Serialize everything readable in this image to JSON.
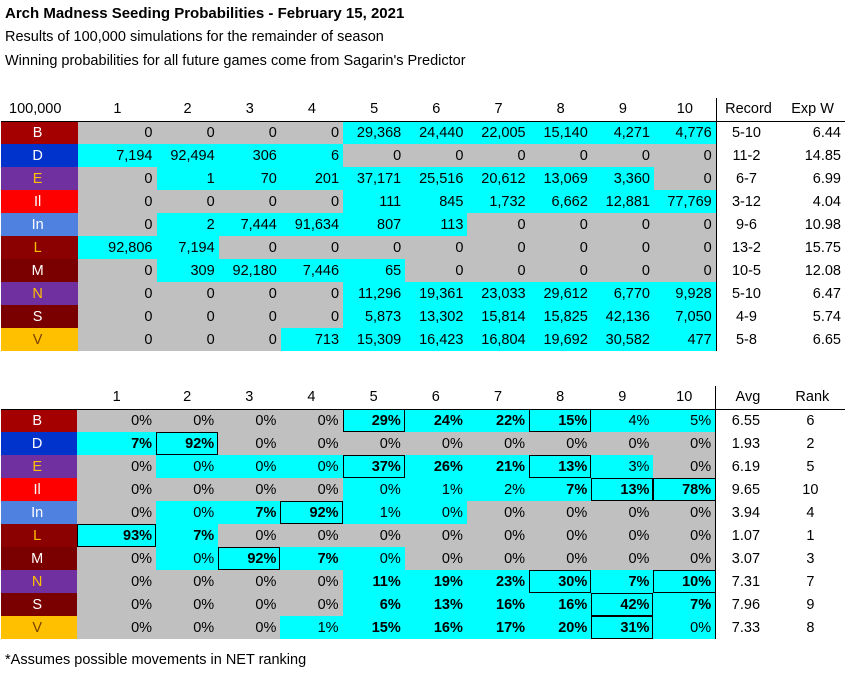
{
  "title": "Arch Madness Seeding Probabilities - February 15, 2021",
  "subtitle1": "Results of 100,000 simulations for the remainder of season",
  "subtitle2": "Winning probabilities for all future games come from Sagarin's Predictor",
  "footnote": "*Assumes possible movements in NET ranking",
  "colors": {
    "cyan": "#00ffff",
    "gray": "#c0c0c0"
  },
  "counts": {
    "corner": "100,000",
    "cols": [
      "1",
      "2",
      "3",
      "4",
      "5",
      "6",
      "7",
      "8",
      "9",
      "10"
    ],
    "side_headers": [
      "Record",
      "Exp W"
    ],
    "rows": [
      {
        "team": "B",
        "color": "#a50000",
        "text": "#ffffff",
        "cells": [
          "0",
          "0",
          "0",
          "0",
          "29,368",
          "24,440",
          "22,005",
          "15,140",
          "4,271",
          "4,776"
        ],
        "fills": [
          "g",
          "g",
          "g",
          "g",
          "c",
          "c",
          "c",
          "c",
          "c",
          "c"
        ],
        "record": "5-10",
        "expw": "6.44"
      },
      {
        "team": "D",
        "color": "#0033cc",
        "text": "#ffffff",
        "cells": [
          "7,194",
          "92,494",
          "306",
          "6",
          "0",
          "0",
          "0",
          "0",
          "0",
          "0"
        ],
        "fills": [
          "c",
          "c",
          "c",
          "c",
          "g",
          "g",
          "g",
          "g",
          "g",
          "g"
        ],
        "record": "11-2",
        "expw": "14.85"
      },
      {
        "team": "E",
        "color": "#7030a0",
        "text": "#ffc000",
        "cells": [
          "0",
          "1",
          "70",
          "201",
          "37,171",
          "25,516",
          "20,612",
          "13,069",
          "3,360",
          "0"
        ],
        "fills": [
          "g",
          "c",
          "c",
          "c",
          "c",
          "c",
          "c",
          "c",
          "c",
          "g"
        ],
        "record": "6-7",
        "expw": "6.99"
      },
      {
        "team": "Il",
        "color": "#ff0000",
        "text": "#ffffff",
        "cells": [
          "0",
          "0",
          "0",
          "0",
          "111",
          "845",
          "1,732",
          "6,662",
          "12,881",
          "77,769"
        ],
        "fills": [
          "g",
          "g",
          "g",
          "g",
          "c",
          "c",
          "c",
          "c",
          "c",
          "c"
        ],
        "record": "3-12",
        "expw": "4.04"
      },
      {
        "team": "In",
        "color": "#4f81e0",
        "text": "#ffffff",
        "cells": [
          "0",
          "2",
          "7,444",
          "91,634",
          "807",
          "113",
          "0",
          "0",
          "0",
          "0"
        ],
        "fills": [
          "g",
          "c",
          "c",
          "c",
          "c",
          "c",
          "g",
          "g",
          "g",
          "g"
        ],
        "record": "9-6",
        "expw": "10.98"
      },
      {
        "team": "L",
        "color": "#8b0000",
        "text": "#ffc000",
        "cells": [
          "92,806",
          "7,194",
          "0",
          "0",
          "0",
          "0",
          "0",
          "0",
          "0",
          "0"
        ],
        "fills": [
          "c",
          "c",
          "g",
          "g",
          "g",
          "g",
          "g",
          "g",
          "g",
          "g"
        ],
        "record": "13-2",
        "expw": "15.75"
      },
      {
        "team": "M",
        "color": "#7a0000",
        "text": "#ffffff",
        "cells": [
          "0",
          "309",
          "92,180",
          "7,446",
          "65",
          "0",
          "0",
          "0",
          "0",
          "0"
        ],
        "fills": [
          "g",
          "c",
          "c",
          "c",
          "c",
          "g",
          "g",
          "g",
          "g",
          "g"
        ],
        "record": "10-5",
        "expw": "12.08"
      },
      {
        "team": "N",
        "color": "#7030a0",
        "text": "#ffc000",
        "cells": [
          "0",
          "0",
          "0",
          "0",
          "11,296",
          "19,361",
          "23,033",
          "29,612",
          "6,770",
          "9,928"
        ],
        "fills": [
          "g",
          "g",
          "g",
          "g",
          "c",
          "c",
          "c",
          "c",
          "c",
          "c"
        ],
        "record": "5-10",
        "expw": "6.47"
      },
      {
        "team": "S",
        "color": "#7a0000",
        "text": "#ffffff",
        "cells": [
          "0",
          "0",
          "0",
          "0",
          "5,873",
          "13,302",
          "15,814",
          "15,825",
          "42,136",
          "7,050"
        ],
        "fills": [
          "g",
          "g",
          "g",
          "g",
          "c",
          "c",
          "c",
          "c",
          "c",
          "c"
        ],
        "record": "4-9",
        "expw": "5.74"
      },
      {
        "team": "V",
        "color": "#ffc000",
        "text": "#7a4000",
        "cells": [
          "0",
          "0",
          "0",
          "713",
          "15,309",
          "16,423",
          "16,804",
          "19,692",
          "30,582",
          "477"
        ],
        "fills": [
          "g",
          "g",
          "g",
          "c",
          "c",
          "c",
          "c",
          "c",
          "c",
          "c"
        ],
        "record": "5-8",
        "expw": "6.65"
      }
    ]
  },
  "pcts": {
    "cols": [
      "1",
      "2",
      "3",
      "4",
      "5",
      "6",
      "7",
      "8",
      "9",
      "10"
    ],
    "side_headers": [
      "Avg",
      "Rank"
    ],
    "rows": [
      {
        "team": "B",
        "color": "#a50000",
        "text": "#ffffff",
        "cells": [
          "0%",
          "0%",
          "0%",
          "0%",
          "29%",
          "24%",
          "22%",
          "15%",
          "4%",
          "5%"
        ],
        "fills": [
          "g",
          "g",
          "g",
          "g",
          "c",
          "c",
          "c",
          "c",
          "c",
          "c"
        ],
        "bold": [
          0,
          0,
          0,
          0,
          1,
          1,
          1,
          1,
          0,
          0
        ],
        "boxed": [
          0,
          0,
          0,
          0,
          1,
          0,
          0,
          1,
          0,
          0
        ],
        "avg": "6.55",
        "rank": "6"
      },
      {
        "team": "D",
        "color": "#0033cc",
        "text": "#ffffff",
        "cells": [
          "7%",
          "92%",
          "0%",
          "0%",
          "0%",
          "0%",
          "0%",
          "0%",
          "0%",
          "0%"
        ],
        "fills": [
          "c",
          "c",
          "g",
          "g",
          "g",
          "g",
          "g",
          "g",
          "g",
          "g"
        ],
        "bold": [
          1,
          1,
          0,
          0,
          0,
          0,
          0,
          0,
          0,
          0
        ],
        "boxed": [
          0,
          1,
          0,
          0,
          0,
          0,
          0,
          0,
          0,
          0
        ],
        "avg": "1.93",
        "rank": "2"
      },
      {
        "team": "E",
        "color": "#7030a0",
        "text": "#ffc000",
        "cells": [
          "0%",
          "0%",
          "0%",
          "0%",
          "37%",
          "26%",
          "21%",
          "13%",
          "3%",
          "0%"
        ],
        "fills": [
          "g",
          "c",
          "c",
          "c",
          "c",
          "c",
          "c",
          "c",
          "c",
          "g"
        ],
        "bold": [
          0,
          0,
          0,
          0,
          1,
          1,
          1,
          1,
          0,
          0
        ],
        "boxed": [
          0,
          0,
          0,
          0,
          1,
          0,
          0,
          1,
          0,
          0
        ],
        "avg": "6.19",
        "rank": "5"
      },
      {
        "team": "Il",
        "color": "#ff0000",
        "text": "#ffffff",
        "cells": [
          "0%",
          "0%",
          "0%",
          "0%",
          "0%",
          "1%",
          "2%",
          "7%",
          "13%",
          "78%"
        ],
        "fills": [
          "g",
          "g",
          "g",
          "g",
          "c",
          "c",
          "c",
          "c",
          "c",
          "c"
        ],
        "bold": [
          0,
          0,
          0,
          0,
          0,
          0,
          0,
          1,
          1,
          1
        ],
        "boxed": [
          0,
          0,
          0,
          0,
          0,
          0,
          0,
          0,
          1,
          1
        ],
        "avg": "9.65",
        "rank": "10"
      },
      {
        "team": "In",
        "color": "#4f81e0",
        "text": "#ffffff",
        "cells": [
          "0%",
          "0%",
          "7%",
          "92%",
          "1%",
          "0%",
          "0%",
          "0%",
          "0%",
          "0%"
        ],
        "fills": [
          "g",
          "c",
          "c",
          "c",
          "c",
          "c",
          "g",
          "g",
          "g",
          "g"
        ],
        "bold": [
          0,
          0,
          1,
          1,
          0,
          0,
          0,
          0,
          0,
          0
        ],
        "boxed": [
          0,
          0,
          0,
          1,
          0,
          0,
          0,
          0,
          0,
          0
        ],
        "avg": "3.94",
        "rank": "4"
      },
      {
        "team": "L",
        "color": "#8b0000",
        "text": "#ffc000",
        "cells": [
          "93%",
          "7%",
          "0%",
          "0%",
          "0%",
          "0%",
          "0%",
          "0%",
          "0%",
          "0%"
        ],
        "fills": [
          "c",
          "c",
          "g",
          "g",
          "g",
          "g",
          "g",
          "g",
          "g",
          "g"
        ],
        "bold": [
          1,
          1,
          0,
          0,
          0,
          0,
          0,
          0,
          0,
          0
        ],
        "boxed": [
          1,
          0,
          0,
          0,
          0,
          0,
          0,
          0,
          0,
          0
        ],
        "avg": "1.07",
        "rank": "1"
      },
      {
        "team": "M",
        "color": "#7a0000",
        "text": "#ffffff",
        "cells": [
          "0%",
          "0%",
          "92%",
          "7%",
          "0%",
          "0%",
          "0%",
          "0%",
          "0%",
          "0%"
        ],
        "fills": [
          "g",
          "c",
          "c",
          "c",
          "c",
          "g",
          "g",
          "g",
          "g",
          "g"
        ],
        "bold": [
          0,
          0,
          1,
          1,
          0,
          0,
          0,
          0,
          0,
          0
        ],
        "boxed": [
          0,
          0,
          1,
          0,
          0,
          0,
          0,
          0,
          0,
          0
        ],
        "avg": "3.07",
        "rank": "3"
      },
      {
        "team": "N",
        "color": "#7030a0",
        "text": "#ffc000",
        "cells": [
          "0%",
          "0%",
          "0%",
          "0%",
          "11%",
          "19%",
          "23%",
          "30%",
          "7%",
          "10%"
        ],
        "fills": [
          "g",
          "g",
          "g",
          "g",
          "c",
          "c",
          "c",
          "c",
          "c",
          "c"
        ],
        "bold": [
          0,
          0,
          0,
          0,
          1,
          1,
          1,
          1,
          1,
          1
        ],
        "boxed": [
          0,
          0,
          0,
          0,
          0,
          0,
          0,
          1,
          0,
          1
        ],
        "avg": "7.31",
        "rank": "7"
      },
      {
        "team": "S",
        "color": "#7a0000",
        "text": "#ffffff",
        "cells": [
          "0%",
          "0%",
          "0%",
          "0%",
          "6%",
          "13%",
          "16%",
          "16%",
          "42%",
          "7%"
        ],
        "fills": [
          "g",
          "g",
          "g",
          "g",
          "c",
          "c",
          "c",
          "c",
          "c",
          "c"
        ],
        "bold": [
          0,
          0,
          0,
          0,
          1,
          1,
          1,
          1,
          1,
          1
        ],
        "boxed": [
          0,
          0,
          0,
          0,
          0,
          0,
          0,
          0,
          1,
          0
        ],
        "avg": "7.96",
        "rank": "9"
      },
      {
        "team": "V",
        "color": "#ffc000",
        "text": "#7a4000",
        "cells": [
          "0%",
          "0%",
          "0%",
          "1%",
          "15%",
          "16%",
          "17%",
          "20%",
          "31%",
          "0%"
        ],
        "fills": [
          "g",
          "g",
          "g",
          "c",
          "c",
          "c",
          "c",
          "c",
          "c",
          "c"
        ],
        "bold": [
          0,
          0,
          0,
          0,
          1,
          1,
          1,
          1,
          1,
          0
        ],
        "boxed": [
          0,
          0,
          0,
          0,
          0,
          0,
          0,
          0,
          1,
          0
        ],
        "avg": "7.33",
        "rank": "8"
      }
    ]
  }
}
